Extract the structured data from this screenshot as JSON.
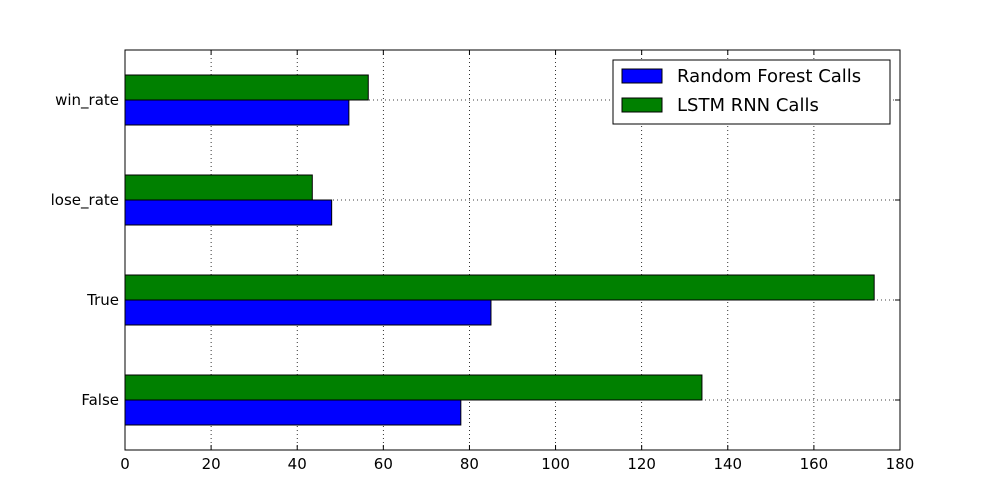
{
  "chart_data": {
    "type": "bar",
    "orientation": "horizontal",
    "categories": [
      "False",
      "True",
      "lose_rate",
      "win_rate"
    ],
    "series": [
      {
        "name": "Random Forest Calls",
        "values": [
          78,
          85,
          48,
          52
        ],
        "color": "#0000ff"
      },
      {
        "name": "LSTM RNN Calls",
        "values": [
          134,
          174,
          43.5,
          56.5
        ],
        "color": "#008000"
      }
    ],
    "xlim": [
      0,
      180
    ],
    "xticks": [
      "0",
      "20",
      "40",
      "60",
      "80",
      "100",
      "120",
      "140",
      "160",
      "180"
    ],
    "grid": true,
    "legend_position": "top-right"
  }
}
